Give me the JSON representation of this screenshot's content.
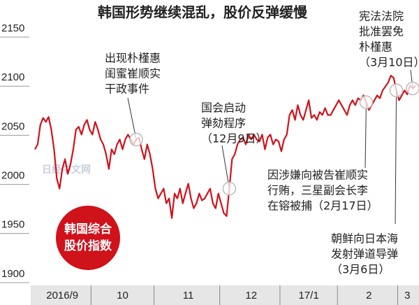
{
  "chart_data": {
    "type": "line",
    "title": "韩国形势继续混乱，股价反弹缓慢",
    "badge": [
      "韩国综合",
      "股价指数"
    ],
    "watermark": "日经中文网",
    "color": "#d0121b",
    "ylim": [
      1890,
      2160
    ],
    "yticks": [
      1900,
      1950,
      2000,
      2050,
      2100,
      2150
    ],
    "categories": [
      null,
      null,
      null,
      null,
      null,
      null,
      null,
      null,
      null,
      null,
      "2016/9",
      null,
      null,
      null,
      null,
      null,
      null,
      null,
      null,
      null,
      null,
      null,
      null,
      null,
      null,
      null,
      null,
      null,
      null,
      null,
      null,
      null,
      "10",
      null,
      null,
      null,
      null,
      null,
      null,
      null,
      null,
      null,
      null,
      null,
      null,
      null,
      null,
      null,
      null,
      null,
      null,
      null,
      null,
      null,
      null,
      null,
      "11",
      null,
      null,
      null,
      null,
      null,
      null,
      null,
      null,
      null,
      null,
      null,
      null,
      null,
      null,
      null,
      null,
      null,
      null,
      null,
      null,
      null,
      null,
      "12",
      null,
      null,
      null,
      null,
      null,
      null,
      null,
      null,
      null,
      null,
      null,
      null,
      null,
      null,
      null,
      null,
      null,
      null,
      null,
      null,
      "17/1",
      null,
      null,
      null,
      null,
      null,
      null,
      null,
      null,
      null,
      null,
      null,
      null,
      null,
      null,
      null,
      null,
      null,
      null,
      null,
      null,
      null,
      "2",
      null,
      null,
      null,
      null,
      null,
      null,
      null,
      null,
      null,
      null,
      null,
      null,
      null,
      "3",
      null,
      null,
      null
    ],
    "values": [
      2030,
      2035,
      2055,
      2062,
      2058,
      2063,
      2050,
      2030,
      2000,
      1990,
      2010,
      2020,
      2005,
      2015,
      2030,
      2050,
      2053,
      2045,
      2055,
      2060,
      2050,
      2045,
      2058,
      2050,
      2040,
      2035,
      2025,
      2010,
      2030,
      2025,
      2035,
      2040,
      2030,
      2040,
      2045,
      2040,
      2035,
      2040,
      2042,
      2030,
      2020,
      2035,
      2025,
      2010,
      1990,
      1980,
      1985,
      1990,
      1975,
      1980,
      1960,
      1985,
      1980,
      1990,
      1975,
      1985,
      1995,
      1980,
      1970,
      1975,
      1985,
      1978,
      1980,
      1985,
      1990,
      1975,
      1970,
      1985,
      1975,
      1965,
      1962,
      1990,
      2020,
      2025,
      2035,
      2040,
      2042,
      2035,
      2045,
      2040,
      2045,
      2040,
      2038,
      2045,
      2030,
      2042,
      2045,
      2035,
      2040,
      2038,
      2028,
      2040,
      2045,
      2065,
      2070,
      2060,
      2075,
      2065,
      2060,
      2070,
      2080,
      2062,
      2065,
      2060,
      2068,
      2065,
      2072,
      2065,
      2065,
      2070,
      2075,
      2080,
      2075,
      2070,
      2065,
      2075,
      2080,
      2075,
      2082,
      2080,
      2085,
      2078,
      2070,
      2075,
      2080,
      2085,
      2082,
      2090,
      2094,
      2098,
      2105,
      2103,
      2090,
      2080,
      2085,
      2090,
      2086,
      2095,
      2092,
      2095
    ],
    "annotations": [
      [
        "出现朴槿惠",
        "闺蜜崔顺实",
        "干政事件"
      ],
      [
        "国会启动",
        "弹劾程序",
        "（12月9日）"
      ],
      [
        "因涉嫌向被告崔顺实",
        "行贿，三星副会长李",
        "在镕被捕（2月17日）"
      ],
      [
        "朝鲜向日本海",
        "发射弹道导弹",
        "（3月6日）"
      ],
      [
        "宪法法院",
        "批准罢免",
        "朴槿惠",
        "（3月10日）"
      ]
    ]
  }
}
